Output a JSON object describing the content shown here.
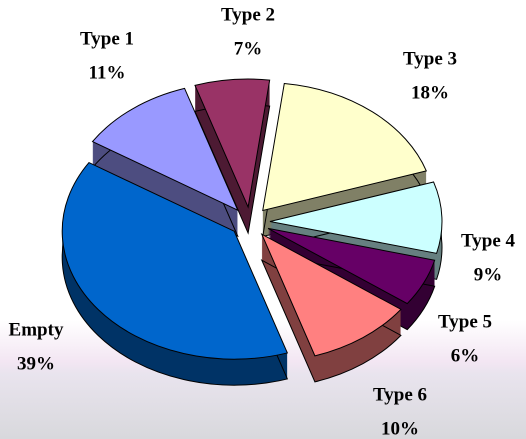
{
  "chart_data": {
    "type": "pie",
    "categories": [
      "Type 1",
      "Type 2",
      "Type 3",
      "Type 4",
      "Type 5",
      "Type 6",
      "Empty"
    ],
    "values": [
      11,
      7,
      18,
      9,
      6,
      10,
      39
    ],
    "value_labels": [
      "11%",
      "7%",
      "18%",
      "9%",
      "6%",
      "10%",
      "39%"
    ],
    "colors": [
      "#9999ff",
      "#993366",
      "#ffffcc",
      "#ccffff",
      "#660066",
      "#ff8080",
      "#0066cc"
    ]
  }
}
